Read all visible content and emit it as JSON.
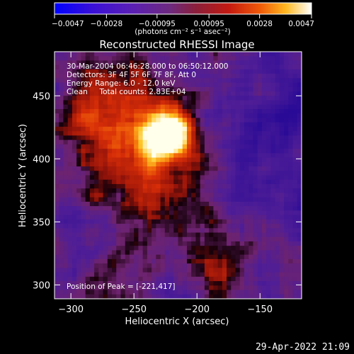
{
  "chart_data": {
    "type": "heatmap",
    "title": "Reconstructed RHESSI Image",
    "xlabel": "Heliocentric X (arcsec)",
    "ylabel": "Heliocentric Y (arcsec)",
    "xlim": [
      -313,
      -117
    ],
    "ylim": [
      289,
      485
    ],
    "x_ticks": [
      -300,
      -250,
      -200,
      -150
    ],
    "x_tick_labels": [
      "−300",
      "−250",
      "−200",
      "−150"
    ],
    "y_ticks": [
      300,
      350,
      400,
      450
    ],
    "y_tick_labels": [
      "300",
      "350",
      "400",
      "450"
    ],
    "colorbar": {
      "min": -0.0047,
      "max": 0.0047,
      "ticks": [
        -0.0047,
        -0.0028,
        -0.00095,
        0.00095,
        0.0028,
        0.0047
      ],
      "tick_labels": [
        "−0.0047",
        "−0.0028",
        "−0.00095",
        "0.00095",
        "0.0028",
        "0.0047"
      ],
      "unit_label": "(photons cm⁻² s⁻¹ asec⁻²)"
    },
    "annotations": [
      "30-Mar-2004 06:46:28.000 to 06:50:12.000",
      "Detectors: 3F 4F 5F 6F 7F 8F, Att 0",
      "Energy Range: 6.0 - 12.0 keV",
      "Clean     Total counts: 2.83E+04"
    ],
    "peak": {
      "label": "Position of Peak = [-221,417]",
      "x": -221,
      "y": 417,
      "value": 0.0047
    },
    "footer_timestamp": "29-Apr-2022 21:09",
    "colors": {
      "background": "#000000",
      "colormap": [
        "#0000ff",
        "#4a16c8",
        "#7a2a9c",
        "#b01e2a",
        "#e03a08",
        "#ff9e10",
        "#ffffc0",
        "#ffffff"
      ]
    }
  }
}
